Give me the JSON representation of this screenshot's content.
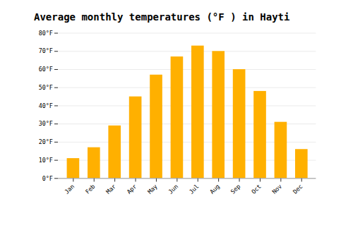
{
  "chart_data": {
    "type": "bar",
    "title": "Average monthly temperatures (°F ) in Hayti",
    "categories": [
      "Jan",
      "Feb",
      "Mar",
      "Apr",
      "May",
      "Jun",
      "Jul",
      "Aug",
      "Sep",
      "Oct",
      "Nov",
      "Dec"
    ],
    "values": [
      11,
      17,
      29,
      45,
      57,
      67,
      73,
      70,
      60,
      48,
      31,
      16
    ],
    "color": "#FFB000",
    "ylim": [
      0,
      80
    ],
    "yticks": [
      {
        "value": 0,
        "label": "0°F"
      },
      {
        "value": 10,
        "label": "10°F"
      },
      {
        "value": 20,
        "label": "20°F"
      },
      {
        "value": 30,
        "label": "30°F"
      },
      {
        "value": 40,
        "label": "40°F"
      },
      {
        "value": 50,
        "label": "50°F"
      },
      {
        "value": 60,
        "label": "60°F"
      },
      {
        "value": 70,
        "label": "70°F"
      },
      {
        "value": 80,
        "label": "80°F"
      }
    ],
    "grid": true
  }
}
